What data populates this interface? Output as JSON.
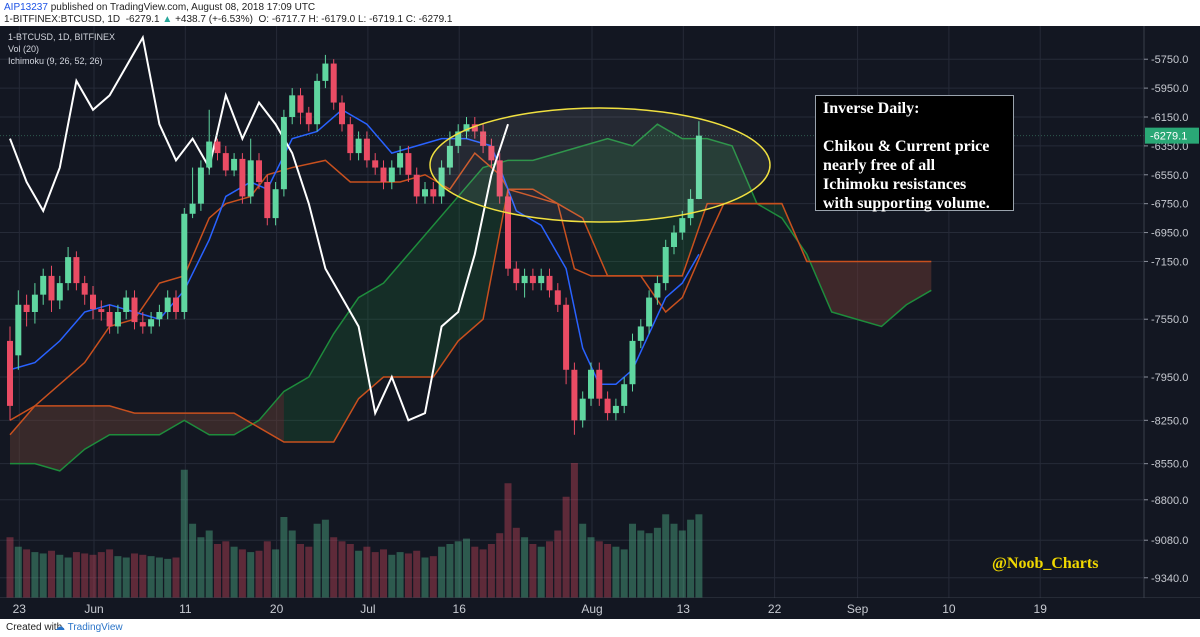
{
  "header": {
    "username": "AIP13237",
    "published": "published on TradingView.com, August 08, 2018 17:09 UTC",
    "symbol_line": "1-BITFINEX:BTCUSD, 1D",
    "price": "-6279.1",
    "change": "+438.7 (+-6.53%)",
    "ohlc": "O: -6717.7  H: -6179.0  L: -6719.1  C: -6279.1"
  },
  "legend": [
    "1-BTCUSD, 1D, BITFINEX",
    "Vol (20)",
    "Ichimoku (9, 26, 52, 26)"
  ],
  "annotation": {
    "title": "Inverse Daily:",
    "lines": [
      "Chikou & Current price",
      "nearly free of all",
      "Ichimoku resistances",
      "with supporting volume."
    ]
  },
  "handle": "@Noob_Charts",
  "footer": {
    "created_with": "Created with",
    "brand": "TradingView"
  },
  "colors": {
    "background": "#131722",
    "bull": "#5fd6a0",
    "bear": "#ea4c64",
    "tenkan": "#2962ff",
    "kijun": "#c8501e",
    "chikou": "#ffffff",
    "span_a": "#1e8c3c",
    "span_b": "#c8501e",
    "highlight": "#f0e040"
  },
  "chart_data": {
    "type": "candlestick",
    "y_scale": "inverted",
    "ylim": [
      -5520,
      -9480
    ],
    "y_ticks": [
      "-5750.0",
      "-5950.0",
      "-6150.0",
      "-6350.0",
      "-6550.0",
      "-6750.0",
      "-6950.0",
      "-7150.0",
      "-7550.0",
      "-7950.0",
      "-8250.0",
      "-8550.0",
      "-8800.0",
      "-9080.0",
      "-9340.0"
    ],
    "x_ticks": [
      "23",
      "Jun",
      "11",
      "20",
      "Jul",
      "16",
      "Aug",
      "13",
      "22",
      "Sep",
      "10",
      "19"
    ],
    "current_price_label": "-6279.1",
    "candles": [
      [
        -7700,
        -8150,
        -7600,
        -8250
      ],
      [
        -7800,
        -7450,
        -7350,
        -7900
      ],
      [
        -7450,
        -7500,
        -7380,
        -7600
      ],
      [
        -7500,
        -7380,
        -7300,
        -7580
      ],
      [
        -7380,
        -7250,
        -7200,
        -7450
      ],
      [
        -7250,
        -7420,
        -7180,
        -7500
      ],
      [
        -7420,
        -7300,
        -7250,
        -7480
      ],
      [
        -7300,
        -7120,
        -7050,
        -7350
      ],
      [
        -7120,
        -7300,
        -7080,
        -7350
      ],
      [
        -7300,
        -7380,
        -7250,
        -7450
      ],
      [
        -7380,
        -7480,
        -7320,
        -7550
      ],
      [
        -7480,
        -7500,
        -7420,
        -7560
      ],
      [
        -7500,
        -7600,
        -7450,
        -7650
      ],
      [
        -7600,
        -7500,
        -7450,
        -7650
      ],
      [
        -7500,
        -7400,
        -7350,
        -7550
      ],
      [
        -7400,
        -7570,
        -7350,
        -7620
      ],
      [
        -7570,
        -7600,
        -7500,
        -7650
      ],
      [
        -7600,
        -7550,
        -7500,
        -7650
      ],
      [
        -7550,
        -7500,
        -7450,
        -7600
      ],
      [
        -7500,
        -7400,
        -7350,
        -7550
      ],
      [
        -7400,
        -7500,
        -7350,
        -7550
      ],
      [
        -7500,
        -6820,
        -6780,
        -7550
      ],
      [
        -6820,
        -6750,
        -6500,
        -6850
      ],
      [
        -6750,
        -6500,
        -6450,
        -6800
      ],
      [
        -6500,
        -6320,
        -6100,
        -6550
      ],
      [
        -6320,
        -6400,
        -6300,
        -6450
      ],
      [
        -6400,
        -6520,
        -6350,
        -6560
      ],
      [
        -6520,
        -6440,
        -6400,
        -6560
      ],
      [
        -6440,
        -6700,
        -6400,
        -6750
      ],
      [
        -6700,
        -6450,
        -6300,
        -6750
      ],
      [
        -6450,
        -6600,
        -6400,
        -6650
      ],
      [
        -6600,
        -6850,
        -6550,
        -6900
      ],
      [
        -6850,
        -6650,
        -6600,
        -6900
      ],
      [
        -6650,
        -6150,
        -6100,
        -6700
      ],
      [
        -6150,
        -6000,
        -5950,
        -6200
      ],
      [
        -6000,
        -6120,
        -5950,
        -6200
      ],
      [
        -6120,
        -6200,
        -6080,
        -6250
      ],
      [
        -6200,
        -5900,
        -5850,
        -6250
      ],
      [
        -5900,
        -5780,
        -5720,
        -5950
      ],
      [
        -5780,
        -6050,
        -5750,
        -6100
      ],
      [
        -6050,
        -6200,
        -6000,
        -6250
      ],
      [
        -6200,
        -6400,
        -6150,
        -6450
      ],
      [
        -6400,
        -6300,
        -6250,
        -6450
      ],
      [
        -6300,
        -6450,
        -6250,
        -6500
      ],
      [
        -6450,
        -6500,
        -6400,
        -6550
      ],
      [
        -6500,
        -6600,
        -6450,
        -6650
      ],
      [
        -6600,
        -6500,
        -6450,
        -6650
      ],
      [
        -6500,
        -6400,
        -6350,
        -6550
      ],
      [
        -6400,
        -6550,
        -6350,
        -6600
      ],
      [
        -6550,
        -6700,
        -6500,
        -6750
      ],
      [
        -6700,
        -6650,
        -6600,
        -6750
      ],
      [
        -6650,
        -6700,
        -6600,
        -6750
      ],
      [
        -6700,
        -6500,
        -6450,
        -6750
      ],
      [
        -6500,
        -6350,
        -6250,
        -6550
      ],
      [
        -6350,
        -6250,
        -6200,
        -6400
      ],
      [
        -6250,
        -6200,
        -6150,
        -6300
      ],
      [
        -6200,
        -6250,
        -6150,
        -6300
      ],
      [
        -6250,
        -6350,
        -6200,
        -6400
      ],
      [
        -6350,
        -6450,
        -6300,
        -6500
      ],
      [
        -6450,
        -6700,
        -6400,
        -6750
      ],
      [
        -6700,
        -7200,
        -6650,
        -7250
      ],
      [
        -7200,
        -7300,
        -7150,
        -7350
      ],
      [
        -7300,
        -7250,
        -7200,
        -7400
      ],
      [
        -7250,
        -7300,
        -7200,
        -7350
      ],
      [
        -7300,
        -7250,
        -7200,
        -7350
      ],
      [
        -7250,
        -7350,
        -7200,
        -7400
      ],
      [
        -7350,
        -7450,
        -7300,
        -7500
      ],
      [
        -7450,
        -7900,
        -7400,
        -8000
      ],
      [
        -7900,
        -8250,
        -7850,
        -8350
      ],
      [
        -8250,
        -8100,
        -8050,
        -8300
      ],
      [
        -8100,
        -7900,
        -7850,
        -8150
      ],
      [
        -7900,
        -8100,
        -7850,
        -8150
      ],
      [
        -8100,
        -8200,
        -8050,
        -8250
      ],
      [
        -8200,
        -8150,
        -8100,
        -8250
      ],
      [
        -8150,
        -8000,
        -7950,
        -8200
      ],
      [
        -8000,
        -7700,
        -7650,
        -8050
      ],
      [
        -7700,
        -7600,
        -7550,
        -7750
      ],
      [
        -7600,
        -7400,
        -7350,
        -7650
      ],
      [
        -7400,
        -7300,
        -7250,
        -7450
      ],
      [
        -7300,
        -7050,
        -7000,
        -7350
      ],
      [
        -7050,
        -6950,
        -6900,
        -7100
      ],
      [
        -6950,
        -6850,
        -6800,
        -7000
      ],
      [
        -6850,
        -6717,
        -6650,
        -6900
      ],
      [
        -6717.7,
        -6279.1,
        -6179,
        -6719.1
      ]
    ],
    "volume": [
      0.45,
      0.38,
      0.36,
      0.34,
      0.33,
      0.35,
      0.32,
      0.3,
      0.34,
      0.33,
      0.32,
      0.34,
      0.36,
      0.31,
      0.3,
      0.33,
      0.32,
      0.31,
      0.3,
      0.29,
      0.3,
      0.95,
      0.55,
      0.45,
      0.5,
      0.4,
      0.42,
      0.38,
      0.36,
      0.34,
      0.35,
      0.42,
      0.36,
      0.6,
      0.5,
      0.4,
      0.38,
      0.55,
      0.58,
      0.45,
      0.42,
      0.4,
      0.35,
      0.38,
      0.34,
      0.36,
      0.32,
      0.34,
      0.33,
      0.35,
      0.3,
      0.31,
      0.38,
      0.4,
      0.42,
      0.44,
      0.38,
      0.36,
      0.4,
      0.48,
      0.85,
      0.52,
      0.45,
      0.4,
      0.38,
      0.42,
      0.5,
      0.75,
      1.0,
      0.55,
      0.45,
      0.42,
      0.4,
      0.38,
      0.36,
      0.55,
      0.5,
      0.48,
      0.52,
      0.62,
      0.55,
      0.5,
      0.58,
      0.62
    ],
    "tenkan": [
      [
        0,
        -7900
      ],
      [
        3,
        -7850
      ],
      [
        6,
        -7700
      ],
      [
        9,
        -7500
      ],
      [
        12,
        -7450
      ],
      [
        15,
        -7500
      ],
      [
        18,
        -7550
      ],
      [
        21,
        -7350
      ],
      [
        24,
        -7000
      ],
      [
        26,
        -6700
      ],
      [
        29,
        -6600
      ],
      [
        31,
        -6650
      ],
      [
        34,
        -6300
      ],
      [
        37,
        -6250
      ],
      [
        40,
        -6100
      ],
      [
        43,
        -6200
      ],
      [
        46,
        -6400
      ],
      [
        49,
        -6350
      ],
      [
        52,
        -6300
      ],
      [
        55,
        -6300
      ],
      [
        58,
        -6350
      ],
      [
        61,
        -6800
      ],
      [
        64,
        -6900
      ],
      [
        67,
        -7200
      ],
      [
        69,
        -7750
      ],
      [
        71,
        -8000
      ],
      [
        73,
        -8000
      ],
      [
        75,
        -7900
      ],
      [
        77,
        -7650
      ],
      [
        79,
        -7400
      ],
      [
        81,
        -7300
      ],
      [
        83,
        -7100
      ]
    ],
    "kijun": [
      [
        0,
        -8250
      ],
      [
        3,
        -8150
      ],
      [
        6,
        -8000
      ],
      [
        9,
        -7850
      ],
      [
        12,
        -7600
      ],
      [
        15,
        -7550
      ],
      [
        18,
        -7300
      ],
      [
        21,
        -7250
      ],
      [
        24,
        -6850
      ],
      [
        26,
        -6750
      ],
      [
        29,
        -6700
      ],
      [
        31,
        -6550
      ],
      [
        34,
        -6500
      ],
      [
        38,
        -6450
      ],
      [
        41,
        -6600
      ],
      [
        44,
        -6600
      ],
      [
        47,
        -6600
      ],
      [
        50,
        -6550
      ],
      [
        53,
        -6650
      ],
      [
        56,
        -6400
      ],
      [
        59,
        -6550
      ],
      [
        60,
        -6650
      ],
      [
        63,
        -6700
      ],
      [
        66,
        -6750
      ],
      [
        68,
        -7200
      ],
      [
        70,
        -7250
      ],
      [
        73,
        -7250
      ],
      [
        76,
        -7250
      ],
      [
        79,
        -7500
      ],
      [
        81,
        -7400
      ],
      [
        84,
        -7000
      ],
      [
        86,
        -6750
      ],
      [
        89,
        -6750
      ],
      [
        93,
        -6750
      ]
    ],
    "chikou": [
      [
        0,
        -6300
      ],
      [
        2,
        -6600
      ],
      [
        4,
        -6800
      ],
      [
        6,
        -6500
      ],
      [
        8,
        -5900
      ],
      [
        10,
        -6100
      ],
      [
        12,
        -6000
      ],
      [
        14,
        -5800
      ],
      [
        16,
        -5600
      ],
      [
        18,
        -6200
      ],
      [
        20,
        -6450
      ],
      [
        22,
        -6300
      ],
      [
        24,
        -6500
      ],
      [
        26,
        -6000
      ],
      [
        28,
        -6300
      ],
      [
        30,
        -6050
      ],
      [
        32,
        -6200
      ],
      [
        34,
        -6400
      ],
      [
        36,
        -6750
      ],
      [
        38,
        -7200
      ],
      [
        40,
        -7400
      ],
      [
        42,
        -7600
      ],
      [
        44,
        -8200
      ],
      [
        46,
        -7950
      ],
      [
        48,
        -8250
      ],
      [
        50,
        -8200
      ],
      [
        52,
        -7600
      ],
      [
        54,
        -7500
      ],
      [
        56,
        -7100
      ],
      [
        58,
        -6550
      ],
      [
        60,
        -6200
      ]
    ],
    "span_a": [
      [
        0,
        -8550
      ],
      [
        3,
        -8550
      ],
      [
        6,
        -8600
      ],
      [
        9,
        -8450
      ],
      [
        12,
        -8350
      ],
      [
        15,
        -8350
      ],
      [
        18,
        -8350
      ],
      [
        21,
        -8250
      ],
      [
        24,
        -8350
      ],
      [
        27,
        -8350
      ],
      [
        30,
        -8250
      ],
      [
        33,
        -8050
      ],
      [
        36,
        -7950
      ],
      [
        39,
        -7650
      ],
      [
        42,
        -7400
      ],
      [
        45,
        -7300
      ],
      [
        48,
        -7100
      ],
      [
        51,
        -6900
      ],
      [
        54,
        -6700
      ],
      [
        57,
        -6500
      ],
      [
        60,
        -6450
      ],
      [
        63,
        -6450
      ],
      [
        66,
        -6400
      ],
      [
        69,
        -6350
      ],
      [
        72,
        -6300
      ],
      [
        75,
        -6350
      ],
      [
        78,
        -6200
      ],
      [
        81,
        -6300
      ],
      [
        84,
        -6300
      ],
      [
        87,
        -6350
      ],
      [
        90,
        -6750
      ],
      [
        93,
        -6850
      ],
      [
        96,
        -7100
      ],
      [
        99,
        -7500
      ],
      [
        102,
        -7550
      ],
      [
        105,
        -7600
      ],
      [
        108,
        -7450
      ],
      [
        111,
        -7350
      ]
    ],
    "span_b": [
      [
        0,
        -8350
      ],
      [
        3,
        -8150
      ],
      [
        6,
        -8150
      ],
      [
        9,
        -8150
      ],
      [
        12,
        -8150
      ],
      [
        15,
        -8200
      ],
      [
        18,
        -8200
      ],
      [
        21,
        -8200
      ],
      [
        24,
        -8200
      ],
      [
        27,
        -8200
      ],
      [
        30,
        -8300
      ],
      [
        33,
        -8400
      ],
      [
        36,
        -8400
      ],
      [
        39,
        -8400
      ],
      [
        42,
        -8100
      ],
      [
        45,
        -7950
      ],
      [
        48,
        -7950
      ],
      [
        51,
        -7950
      ],
      [
        54,
        -7700
      ],
      [
        57,
        -7550
      ],
      [
        60,
        -6650
      ],
      [
        63,
        -6650
      ],
      [
        66,
        -6750
      ],
      [
        69,
        -6850
      ],
      [
        72,
        -7250
      ],
      [
        75,
        -7250
      ],
      [
        78,
        -7250
      ],
      [
        81,
        -7250
      ],
      [
        84,
        -6750
      ],
      [
        87,
        -6750
      ],
      [
        90,
        -6750
      ],
      [
        93,
        -6750
      ],
      [
        96,
        -7150
      ],
      [
        99,
        -7150
      ],
      [
        102,
        -7150
      ],
      [
        105,
        -7150
      ],
      [
        108,
        -7150
      ],
      [
        111,
        -7150
      ]
    ]
  }
}
